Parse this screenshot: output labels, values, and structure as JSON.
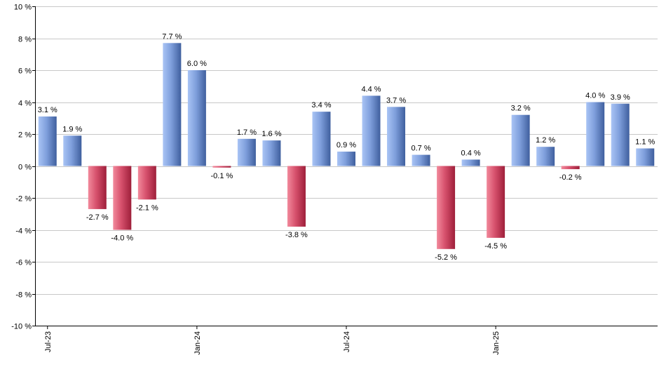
{
  "chart_data": {
    "type": "bar",
    "x_labels": [
      "Jul-23",
      "",
      "",
      "",
      "",
      "",
      "Jan-24",
      "",
      "",
      "",
      "",
      "",
      "Jul-24",
      "",
      "",
      "",
      "",
      "",
      "Jan-25",
      "",
      "",
      "",
      "",
      "",
      ""
    ],
    "values": [
      3.1,
      1.9,
      -2.7,
      -4.0,
      -2.1,
      7.7,
      6.0,
      -0.1,
      1.7,
      1.6,
      -3.8,
      3.4,
      0.9,
      4.4,
      3.7,
      0.7,
      -5.2,
      0.4,
      -4.5,
      3.2,
      1.2,
      -0.2,
      4.0,
      3.9,
      1.1
    ],
    "value_labels": [
      "3.1 %",
      "1.9 %",
      "-2.7 %",
      "-4.0 %",
      "-2.1 %",
      "7.7 %",
      "6.0 %",
      "-0.1 %",
      "1.7 %",
      "1.6 %",
      "-3.8 %",
      "3.4 %",
      "0.9 %",
      "4.4 %",
      "3.7 %",
      "0.7 %",
      "-5.2 %",
      "0.4 %",
      "-4.5 %",
      "3.2 %",
      "1.2 %",
      "-0.2 %",
      "4.0 %",
      "3.9 %",
      "1.1 %"
    ],
    "y_ticks": [
      10,
      8,
      6,
      4,
      2,
      0,
      -2,
      -4,
      -6,
      -8,
      -10
    ],
    "y_tick_labels": [
      "10 %",
      "8 %",
      "6 %",
      "4 %",
      "2 %",
      "0 %",
      "-2 %",
      "-4 %",
      "-6 %",
      "-8 %",
      "-10 %"
    ],
    "ylim": [
      -10,
      10
    ],
    "grid": true,
    "colors": {
      "positive_light": "#a9c4f5",
      "positive_dark": "#3f5f9e",
      "negative_light": "#f28a9c",
      "negative_dark": "#9e1f3a",
      "grid": "#c8c8c8",
      "axis": "#000000"
    }
  }
}
